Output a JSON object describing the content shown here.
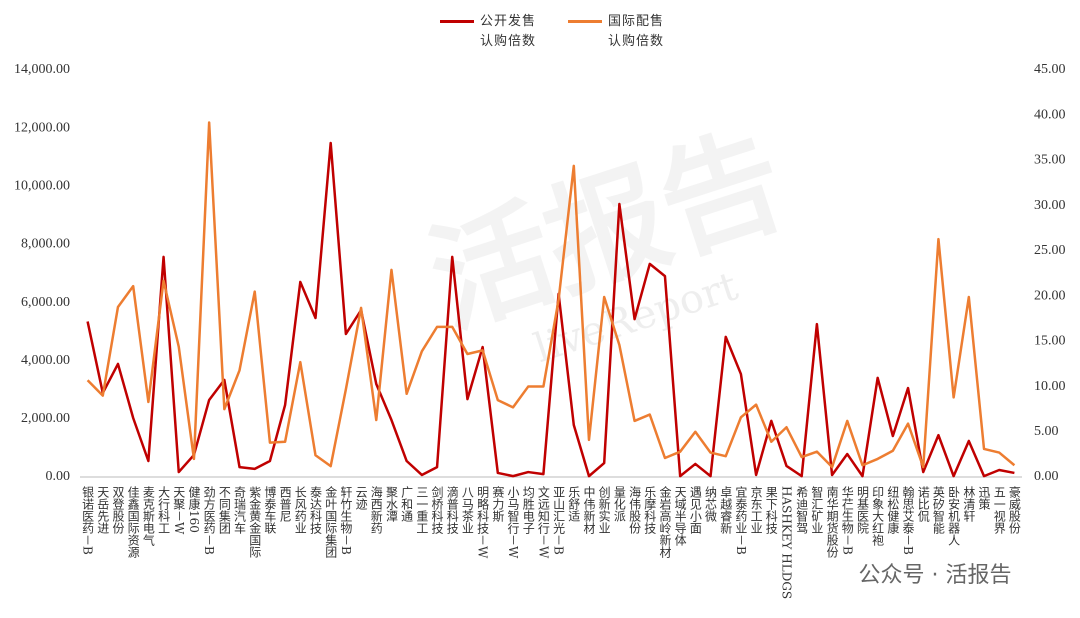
{
  "chart_data": {
    "type": "line",
    "categories": [
      "银诺医药－B",
      "天岳先进",
      "双登股份",
      "佳鑫国际资源",
      "麦克斯电气",
      "大行科工",
      "天聚－W",
      "健康160",
      "劲方医药－B",
      "不同集团",
      "奇瑞汽车",
      "紫金黄金国际",
      "博泰车联",
      "西普尼",
      "长风药业",
      "泰达科技",
      "金叶国际集团",
      "轩竹生物－B",
      "云迹",
      "海西新药",
      "聚水潭",
      "广和通",
      "三一重工",
      "剑桥科技",
      "滴普科技",
      "八马茶业",
      "明略科技－W",
      "赛力斯",
      "小马智行－W",
      "均胜电子",
      "文远知行－W",
      "亚山汇光－B",
      "乐舒适",
      "中伟新材",
      "创新实业",
      "量化派",
      "海伟股份",
      "乐摩科技",
      "金岩高岭新材",
      "天域半导体",
      "遇见小面",
      "纳芯微",
      "卓越睿新",
      "宜泰药业－B",
      "京东工业",
      "果下科技",
      "HASHKEY HLDGS",
      "希迪智驾",
      "智汇矿业",
      "南华期货股份",
      "华芢生物－B",
      "明基医院",
      "印象大红袍",
      "纽松健康",
      "翰思艾泰－B",
      "诺比侃",
      "英矽智能",
      "卧安机器人",
      "林清轩",
      "迅策",
      "五一视界",
      "豪威股份"
    ],
    "series": [
      {
        "name": "公开发售认购倍数",
        "color": "#c00000",
        "axis": "y",
        "values": [
          5350,
          2890,
          3890,
          2030,
          550,
          7570,
          170,
          760,
          2650,
          3340,
          340,
          280,
          550,
          2480,
          6710,
          5470,
          11490,
          4920,
          5740,
          3200,
          1960,
          550,
          70,
          340,
          7570,
          2680,
          4470,
          140,
          30,
          170,
          100,
          6300,
          1790,
          30,
          480,
          9390,
          5430,
          7330,
          6910,
          30,
          450,
          30,
          4820,
          3540,
          70,
          1930,
          380,
          30,
          5260,
          70,
          790,
          30,
          3410,
          1410,
          3060,
          170,
          1440,
          30,
          1240,
          30,
          240,
          140
        ]
      },
      {
        "name": "国际配售认购倍数",
        "color": "#ed7d31",
        "axis": "y2",
        "values": [
          10.7,
          9.0,
          18.8,
          21.1,
          8.3,
          21.7,
          14.4,
          2.0,
          39.2,
          7.5,
          11.8,
          20.5,
          3.8,
          3.9,
          12.7,
          2.4,
          1.2,
          9.7,
          18.7,
          6.3,
          22.9,
          9.2,
          13.9,
          16.6,
          16.6,
          13.6,
          14.0,
          8.5,
          7.7,
          10.0,
          10.0,
          19.6,
          34.4,
          4.1,
          19.9,
          14.6,
          6.2,
          6.9,
          2.1,
          2.8,
          5.0,
          2.7,
          2.3,
          6.6,
          8.0,
          3.9,
          5.5,
          2.2,
          2.8,
          1.1,
          6.2,
          1.3,
          2.0,
          2.9,
          5.9,
          1.1,
          26.3,
          8.8,
          19.9,
          3.1,
          2.7,
          1.3
        ]
      }
    ],
    "ylim": [
      0,
      14000
    ],
    "yticks": [
      {
        "value": 0,
        "label": "0.00"
      },
      {
        "value": 2000,
        "label": "2,000.00"
      },
      {
        "value": 4000,
        "label": "4,000.00"
      },
      {
        "value": 6000,
        "label": "6,000.00"
      },
      {
        "value": 8000,
        "label": "8,000.00"
      },
      {
        "value": 10000,
        "label": "10,000.00"
      },
      {
        "value": 12000,
        "label": "12,000.00"
      },
      {
        "value": 14000,
        "label": "14,000.00"
      }
    ],
    "y2lim": [
      0,
      45
    ],
    "y2ticks": [
      {
        "value": 0,
        "label": "0.00"
      },
      {
        "value": 5,
        "label": "5.00"
      },
      {
        "value": 10,
        "label": "10.00"
      },
      {
        "value": 15,
        "label": "15.00"
      },
      {
        "value": 20,
        "label": "20.00"
      },
      {
        "value": 25,
        "label": "25.00"
      },
      {
        "value": 30,
        "label": "30.00"
      },
      {
        "value": 35,
        "label": "35.00"
      },
      {
        "value": 40,
        "label": "40.00"
      },
      {
        "value": 45,
        "label": "45.00"
      }
    ],
    "grid": false
  },
  "watermark": {
    "main": "活报告",
    "sub": "liveReport",
    "account": "公众号 · 活报告"
  }
}
